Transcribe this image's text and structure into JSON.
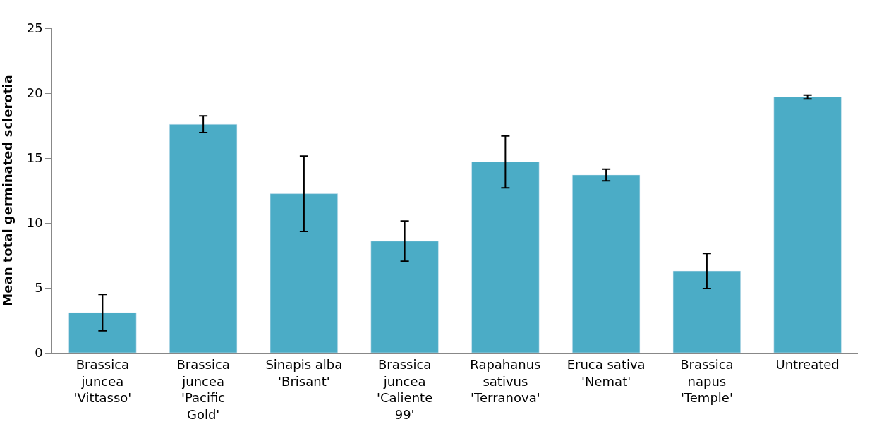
{
  "chart_data": {
    "type": "bar",
    "ylabel": "Mean total germinated sclerotia",
    "categories": [
      "Brassica juncea 'Vittasso'",
      "Brassica juncea 'Pacific Gold'",
      "Sinapis alba 'Brisant'",
      "Brassica juncea 'Caliente 99'",
      "Rapahanus sativus 'Terranova'",
      "Eruca sativa 'Nemat'",
      "Brassica napus 'Temple'",
      "Untreated"
    ],
    "values": [
      3.1,
      17.6,
      12.25,
      8.6,
      14.7,
      13.7,
      6.3,
      19.7
    ],
    "errors": [
      1.4,
      0.65,
      2.9,
      1.55,
      2.0,
      0.45,
      1.35,
      0.15
    ],
    "color": "#4bacc6",
    "ylim": [
      0,
      25
    ],
    "yticks": [
      0,
      5,
      10,
      15,
      20,
      25
    ]
  }
}
